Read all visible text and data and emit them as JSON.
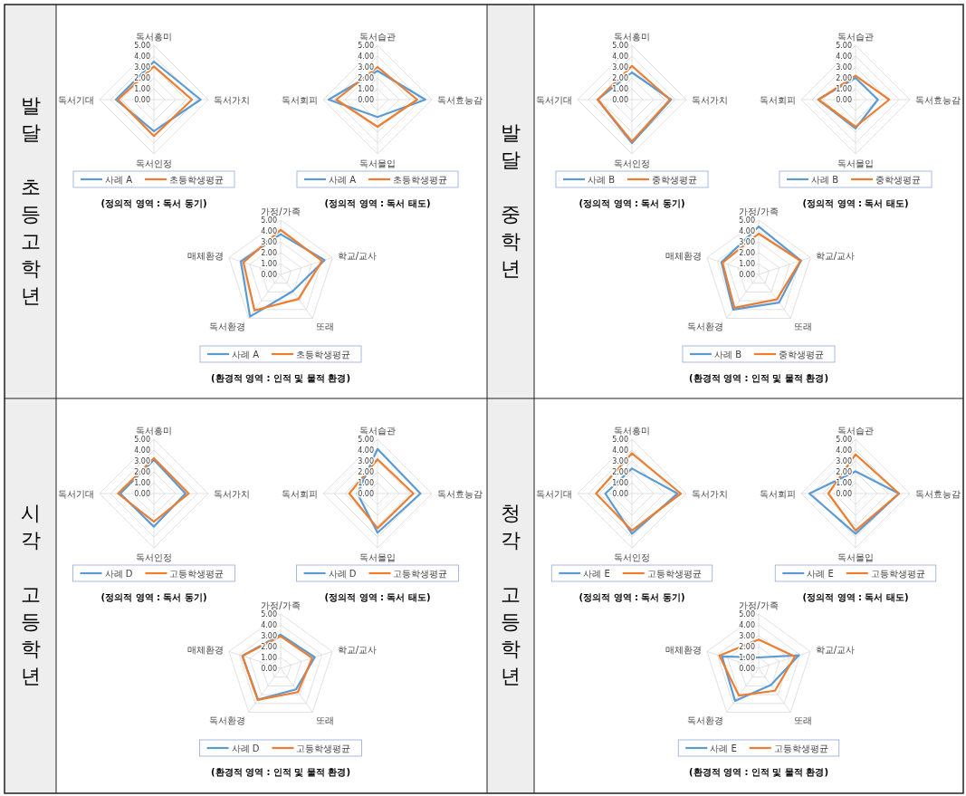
{
  "chart_data": [
    {
      "type": "radar",
      "title": "(정의적 영역 : 독서 동기)",
      "annotations": [
        "발달 초등고학년"
      ],
      "categories": [
        "독서흥미",
        "독서가치",
        "독서인정",
        "독서기대"
      ],
      "ylim": [
        0,
        5
      ],
      "yticks": [
        {
          "value": 0,
          "label": "0.00"
        },
        {
          "value": 1,
          "label": "1.00"
        },
        {
          "value": 2,
          "label": "2.00"
        },
        {
          "value": 3,
          "label": "3.00"
        },
        {
          "value": 4,
          "label": "4.00"
        },
        {
          "value": 5,
          "label": "5.00"
        }
      ],
      "grid": true,
      "legend": "bottom",
      "series": [
        {
          "name": "사례 A",
          "color": "#5b9bd5",
          "values": [
            3.5,
            4.3,
            2.9,
            3.5
          ]
        },
        {
          "name": "초등학생평균",
          "color": "#ed7d31",
          "values": [
            3.05,
            3.5,
            3.35,
            3.3
          ]
        }
      ]
    },
    {
      "type": "radar",
      "title": "(정의적 영역 : 독서 태도)",
      "categories": [
        "독서습관",
        "독서효능감",
        "독서몰입",
        "독서회피"
      ],
      "ylim": [
        0,
        5
      ],
      "yticks": [
        {
          "value": 0,
          "label": "0.00"
        },
        {
          "value": 1,
          "label": "1.00"
        },
        {
          "value": 2,
          "label": "2.00"
        },
        {
          "value": 3,
          "label": "3.00"
        },
        {
          "value": 4,
          "label": "4.00"
        },
        {
          "value": 5,
          "label": "5.00"
        }
      ],
      "grid": true,
      "legend": "bottom",
      "series": [
        {
          "name": "사례 A",
          "color": "#5b9bd5",
          "values": [
            2.65,
            4.4,
            1.6,
            4.5
          ]
        },
        {
          "name": "초등학생평균",
          "color": "#ed7d31",
          "values": [
            3.0,
            3.65,
            2.5,
            3.8
          ]
        }
      ]
    },
    {
      "type": "radar",
      "title": "(환경적 영역 : 인적 및 물적 환경)",
      "categories": [
        "가정/가족",
        "학교/교사",
        "또래",
        "독서환경",
        "매체환경"
      ],
      "ylim": [
        0,
        5
      ],
      "yticks": [
        {
          "value": 0,
          "label": "0.00"
        },
        {
          "value": 1,
          "label": "1.00"
        },
        {
          "value": 2,
          "label": "2.00"
        },
        {
          "value": 3,
          "label": "3.00"
        },
        {
          "value": 4,
          "label": "4.00"
        },
        {
          "value": 5,
          "label": "5.00"
        }
      ],
      "grid": true,
      "legend": "bottom",
      "series": [
        {
          "name": "사례 A",
          "color": "#5b9bd5",
          "values": [
            3.7,
            4.25,
            1.9,
            4.8,
            3.85
          ]
        },
        {
          "name": "초등학생평균",
          "color": "#ed7d31",
          "values": [
            4.1,
            4.0,
            2.8,
            4.1,
            3.6
          ]
        }
      ]
    },
    {
      "type": "radar",
      "title": "(정의적 영역 : 독서 동기)",
      "annotations": [
        "발달 중학년"
      ],
      "categories": [
        "독서흥미",
        "독서가치",
        "독서인정",
        "독서기대"
      ],
      "ylim": [
        0,
        5
      ],
      "yticks": [
        {
          "value": 0,
          "label": "0.00"
        },
        {
          "value": 1,
          "label": "1.00"
        },
        {
          "value": 2,
          "label": "2.00"
        },
        {
          "value": 3,
          "label": "3.00"
        },
        {
          "value": 4,
          "label": "4.00"
        },
        {
          "value": 5,
          "label": "5.00"
        }
      ],
      "grid": true,
      "legend": "bottom",
      "series": [
        {
          "name": "사례 B",
          "color": "#5b9bd5",
          "values": [
            2.5,
            3.6,
            4.0,
            3.15
          ]
        },
        {
          "name": "중학생평균",
          "color": "#ed7d31",
          "values": [
            3.1,
            3.5,
            3.85,
            3.15
          ]
        }
      ]
    },
    {
      "type": "radar",
      "title": "(정의적 영역 : 독서 태도)",
      "categories": [
        "독서습관",
        "독서효능감",
        "독서몰입",
        "독서회피"
      ],
      "ylim": [
        0,
        5
      ],
      "yticks": [
        {
          "value": 0,
          "label": "0.00"
        },
        {
          "value": 1,
          "label": "1.00"
        },
        {
          "value": 2,
          "label": "2.00"
        },
        {
          "value": 3,
          "label": "3.00"
        },
        {
          "value": 4,
          "label": "4.00"
        },
        {
          "value": 5,
          "label": "5.00"
        }
      ],
      "grid": true,
      "legend": "bottom",
      "series": [
        {
          "name": "사례 B",
          "color": "#5b9bd5",
          "values": [
            2.0,
            2.05,
            2.65,
            3.45
          ]
        },
        {
          "name": "중학생평균",
          "color": "#ed7d31",
          "values": [
            2.2,
            3.1,
            2.5,
            3.4
          ]
        }
      ]
    },
    {
      "type": "radar",
      "title": "(환경적 영역 : 인적 및 물적 환경)",
      "categories": [
        "가정/가족",
        "학교/교사",
        "또래",
        "독서환경",
        "매체환경"
      ],
      "ylim": [
        0,
        5
      ],
      "yticks": [
        {
          "value": 0,
          "label": "0.00"
        },
        {
          "value": 1,
          "label": "1.00"
        },
        {
          "value": 2,
          "label": "2.00"
        },
        {
          "value": 3,
          "label": "3.00"
        },
        {
          "value": 4,
          "label": "4.00"
        },
        {
          "value": 5,
          "label": "5.00"
        }
      ],
      "grid": true,
      "legend": "bottom",
      "series": [
        {
          "name": "사례 B",
          "color": "#5b9bd5",
          "values": [
            4.4,
            4.1,
            3.2,
            4.0,
            3.6
          ]
        },
        {
          "name": "중학생평균",
          "color": "#ed7d31",
          "values": [
            3.75,
            4.05,
            2.85,
            3.8,
            3.5
          ]
        }
      ]
    },
    {
      "type": "radar",
      "title": "(정의적 영역 : 독서 동기)",
      "annotations": [
        "시각 고등학년"
      ],
      "categories": [
        "독서흥미",
        "독서가치",
        "독서인정",
        "독서기대"
      ],
      "ylim": [
        0,
        5
      ],
      "yticks": [
        {
          "value": 0,
          "label": "0.00"
        },
        {
          "value": 1,
          "label": "1.00"
        },
        {
          "value": 2,
          "label": "2.00"
        },
        {
          "value": 3,
          "label": "3.00"
        },
        {
          "value": 4,
          "label": "4.00"
        },
        {
          "value": 5,
          "label": "5.00"
        }
      ],
      "grid": true,
      "legend": "bottom",
      "series": [
        {
          "name": "사례 D",
          "color": "#5b9bd5",
          "values": [
            3.1,
            2.9,
            3.05,
            3.1
          ]
        },
        {
          "name": "고등학생평균",
          "color": "#ed7d31",
          "values": [
            3.25,
            3.2,
            2.6,
            3.3
          ]
        }
      ]
    },
    {
      "type": "radar",
      "title": "(정의적 영역 : 독서 태도)",
      "categories": [
        "독서습관",
        "독서효능감",
        "독서몰입",
        "독서회피"
      ],
      "ylim": [
        0,
        5
      ],
      "yticks": [
        {
          "value": 0,
          "label": "0.00"
        },
        {
          "value": 1,
          "label": "1.00"
        },
        {
          "value": 2,
          "label": "2.00"
        },
        {
          "value": 3,
          "label": "3.00"
        },
        {
          "value": 4,
          "label": "4.00"
        },
        {
          "value": 5,
          "label": "5.00"
        }
      ],
      "grid": true,
      "legend": "bottom",
      "series": [
        {
          "name": "사례 D",
          "color": "#5b9bd5",
          "values": [
            4.1,
            3.95,
            3.6,
            1.85
          ]
        },
        {
          "name": "고등학생평균",
          "color": "#ed7d31",
          "values": [
            3.15,
            3.3,
            3.2,
            2.6
          ]
        }
      ]
    },
    {
      "type": "radar",
      "title": "(환경적 영역 : 인적 및 물적 환경)",
      "categories": [
        "가정/가족",
        "학교/교사",
        "또래",
        "독서환경",
        "매체환경"
      ],
      "ylim": [
        0,
        5
      ],
      "yticks": [
        {
          "value": 0,
          "label": "0.00"
        },
        {
          "value": 1,
          "label": "1.00"
        },
        {
          "value": 2,
          "label": "2.00"
        },
        {
          "value": 3,
          "label": "3.00"
        },
        {
          "value": 4,
          "label": "4.00"
        },
        {
          "value": 5,
          "label": "5.00"
        }
      ],
      "grid": true,
      "legend": "bottom",
      "series": [
        {
          "name": "사례 D",
          "color": "#5b9bd5",
          "values": [
            3.1,
            3.3,
            2.4,
            3.55,
            3.7
          ]
        },
        {
          "name": "고등학생평균",
          "color": "#ed7d31",
          "values": [
            2.95,
            3.05,
            2.7,
            3.6,
            3.7
          ]
        }
      ]
    },
    {
      "type": "radar",
      "title": "(정의적 영역 : 독서 동기)",
      "annotations": [
        "청각 고등학년"
      ],
      "categories": [
        "독서흥미",
        "독서가치",
        "독서인정",
        "독서기대"
      ],
      "ylim": [
        0,
        5
      ],
      "yticks": [
        {
          "value": 0,
          "label": "0.00"
        },
        {
          "value": 1,
          "label": "1.00"
        },
        {
          "value": 2,
          "label": "2.00"
        },
        {
          "value": 3,
          "label": "3.00"
        },
        {
          "value": 4,
          "label": "4.00"
        },
        {
          "value": 5,
          "label": "5.00"
        }
      ],
      "grid": true,
      "legend": "bottom",
      "series": [
        {
          "name": "사례 E",
          "color": "#5b9bd5",
          "values": [
            2.3,
            4.2,
            3.7,
            2.45
          ]
        },
        {
          "name": "고등학생평균",
          "color": "#ed7d31",
          "values": [
            3.7,
            4.5,
            3.4,
            3.3
          ]
        }
      ]
    },
    {
      "type": "radar",
      "title": "(정의적 영역 : 독서 태도)",
      "categories": [
        "독서습관",
        "독서효능감",
        "독서몰입",
        "독서회피"
      ],
      "ylim": [
        0,
        5
      ],
      "yticks": [
        {
          "value": 0,
          "label": "0.00"
        },
        {
          "value": 1,
          "label": "1.00"
        },
        {
          "value": 2,
          "label": "2.00"
        },
        {
          "value": 3,
          "label": "3.00"
        },
        {
          "value": 4,
          "label": "4.00"
        },
        {
          "value": 5,
          "label": "5.00"
        }
      ],
      "grid": true,
      "legend": "bottom",
      "series": [
        {
          "name": "사례 E",
          "color": "#5b9bd5",
          "values": [
            2.05,
            4.0,
            3.7,
            4.25
          ]
        },
        {
          "name": "고등학생평균",
          "color": "#ed7d31",
          "values": [
            3.6,
            4.0,
            3.4,
            2.5
          ]
        }
      ]
    },
    {
      "type": "radar",
      "title": "(환경적 영역 : 인적 및 물적 환경)",
      "categories": [
        "가정/가족",
        "학교/교사",
        "또래",
        "독서환경",
        "매체환경"
      ],
      "ylim": [
        0,
        5
      ],
      "yticks": [
        {
          "value": 0,
          "label": "0.00"
        },
        {
          "value": 1,
          "label": "1.00"
        },
        {
          "value": 2,
          "label": "2.00"
        },
        {
          "value": 3,
          "label": "3.00"
        },
        {
          "value": 4,
          "label": "4.00"
        },
        {
          "value": 5,
          "label": "5.00"
        }
      ],
      "grid": true,
      "legend": "bottom",
      "series": [
        {
          "name": "사례 E",
          "color": "#5b9bd5",
          "values": [
            1.0,
            3.9,
            1.9,
            3.7,
            3.55
          ]
        },
        {
          "name": "고등학생평균",
          "color": "#ed7d31",
          "values": [
            2.65,
            3.5,
            2.55,
            3.1,
            3.8
          ]
        }
      ]
    }
  ]
}
